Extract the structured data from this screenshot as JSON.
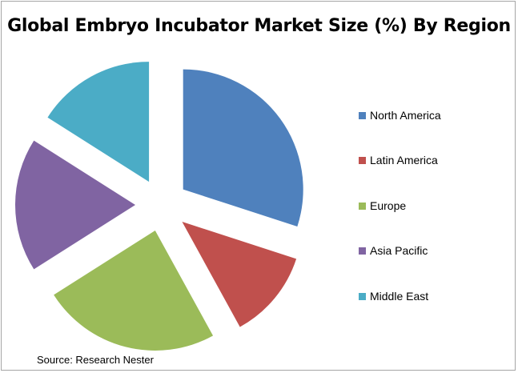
{
  "chart_data": {
    "type": "pie",
    "title": "Global Embryo Incubator Market Size (%) By Region",
    "exploded": true,
    "legend_position": "right",
    "slices": [
      {
        "label": "North America",
        "value": 30,
        "color": "#4f81bd"
      },
      {
        "label": "Latin America",
        "value": 12,
        "color": "#c0504d"
      },
      {
        "label": "Europe",
        "value": 24,
        "color": "#9bbb59"
      },
      {
        "label": "Asia Pacific",
        "value": 18,
        "color": "#8064a2"
      },
      {
        "label": "Middle East",
        "value": 16,
        "color": "#4bacc6"
      }
    ]
  },
  "source": "Source: Research Nester"
}
